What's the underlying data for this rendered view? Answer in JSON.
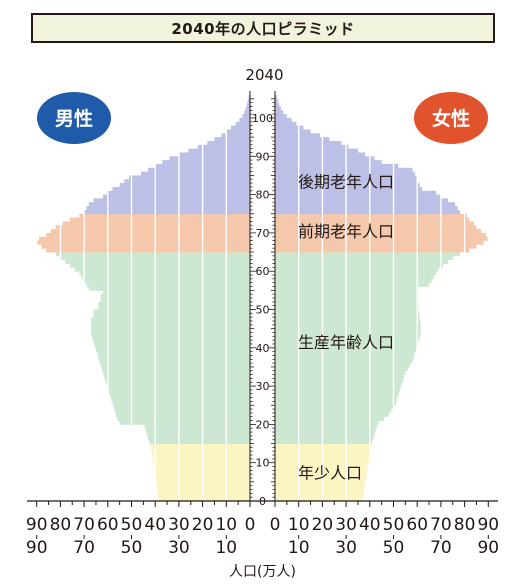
{
  "title": "2040年の人口ピラミッド",
  "year_label": "2040",
  "male_label": "男性",
  "female_label": "女性",
  "colors": {
    "elderly_late": "#bcc0e6",
    "elderly_early": "#f6c8ab",
    "working": "#cde8d2",
    "young": "#fbf4c3",
    "male_badge": "#1f5ba8",
    "female_badge": "#e0532c"
  },
  "chart_data": {
    "type": "bar",
    "orientation": "horizontal",
    "title": "2040年の人口ピラミッド",
    "xlabel": "人口(万人)",
    "x_ticks_top": [
      "90",
      "80",
      "70",
      "60",
      "50",
      "40",
      "30",
      "20",
      "10",
      "0"
    ],
    "x_ticks_bottom": [
      "90",
      "70",
      "50",
      "30",
      "10"
    ],
    "y_ticks": [
      "0",
      "10",
      "20",
      "30",
      "40",
      "50",
      "60",
      "70",
      "80",
      "90",
      "100"
    ],
    "xlim": [
      0,
      90
    ],
    "ylim": [
      0,
      105
    ],
    "age_bands": [
      {
        "label": "年少人口",
        "range": [
          0,
          14
        ]
      },
      {
        "label": "生産年齢人口",
        "range": [
          15,
          64
        ]
      },
      {
        "label": "前期老年人口",
        "range": [
          65,
          74
        ]
      },
      {
        "label": "後期老年人口",
        "range": [
          75,
          105
        ]
      }
    ],
    "ages": [
      0,
      1,
      2,
      3,
      4,
      5,
      6,
      7,
      8,
      9,
      10,
      11,
      12,
      13,
      14,
      15,
      16,
      17,
      18,
      19,
      20,
      21,
      22,
      23,
      24,
      25,
      26,
      27,
      28,
      29,
      30,
      31,
      32,
      33,
      34,
      35,
      36,
      37,
      38,
      39,
      40,
      41,
      42,
      43,
      44,
      45,
      46,
      47,
      48,
      49,
      50,
      51,
      52,
      53,
      54,
      55,
      56,
      57,
      58,
      59,
      60,
      61,
      62,
      63,
      64,
      65,
      66,
      67,
      68,
      69,
      70,
      71,
      72,
      73,
      74,
      75,
      76,
      77,
      78,
      79,
      80,
      81,
      82,
      83,
      84,
      85,
      86,
      87,
      88,
      89,
      90,
      91,
      92,
      93,
      94,
      95,
      96,
      97,
      98,
      99,
      100,
      101,
      102,
      103,
      104,
      105
    ],
    "series": [
      {
        "name": "男性",
        "values": [
          38.5,
          38.8,
          39,
          39.2,
          39.5,
          39.8,
          40,
          40.2,
          40.5,
          40.8,
          41,
          41.2,
          41.5,
          41.8,
          42,
          42.5,
          43,
          43.5,
          44,
          44.5,
          55,
          56,
          56.5,
          57,
          57.5,
          58,
          58.5,
          59,
          59.5,
          60,
          60.5,
          61,
          61.5,
          62,
          62.5,
          63,
          63.5,
          64,
          64.5,
          65,
          65.5,
          66,
          66.5,
          67,
          67,
          67,
          67,
          67,
          66,
          66,
          64,
          64,
          63,
          63,
          62,
          68,
          69,
          70,
          71,
          72,
          74,
          76,
          78,
          80,
          82,
          86,
          88,
          90,
          89,
          86,
          84,
          82,
          79,
          76,
          72,
          70,
          69,
          68,
          66,
          62,
          60,
          58,
          55,
          53,
          51,
          46,
          43,
          40,
          37,
          34,
          30,
          26,
          22,
          18,
          15,
          12,
          10,
          8,
          6,
          4.5,
          3.2,
          2.4,
          1.8,
          1.3,
          0.9,
          0.6
        ]
      },
      {
        "name": "女性",
        "values": [
          37,
          37.2,
          37.5,
          37.7,
          38,
          38.2,
          38.5,
          38.7,
          39,
          39.2,
          39.5,
          39.7,
          40,
          40.2,
          40.5,
          41,
          41.5,
          42,
          42.5,
          43,
          44,
          46,
          48,
          49,
          50,
          51,
          51.5,
          52,
          52.5,
          53,
          53.5,
          54,
          54.5,
          55,
          56,
          57,
          58,
          58.5,
          59,
          59.5,
          60,
          60.5,
          61,
          61.5,
          61.5,
          61.5,
          61.5,
          61,
          61,
          60.5,
          60.5,
          60,
          60,
          60,
          60,
          60,
          65,
          66,
          67,
          68,
          69,
          71,
          73,
          75,
          78,
          82,
          85,
          88,
          90,
          89,
          87,
          85,
          84,
          82,
          81,
          78,
          77,
          76,
          73,
          70,
          68,
          62,
          61,
          60,
          60,
          59,
          58,
          52,
          45,
          42,
          38,
          35,
          31,
          28,
          23,
          19,
          15,
          12,
          9,
          7,
          5,
          3.5,
          2.5,
          1.8,
          1.2,
          0.8
        ]
      }
    ],
    "band_labels": [
      {
        "text": "後期老年人口",
        "age": 83
      },
      {
        "text": "前期老年人口",
        "age": 70
      },
      {
        "text": "生産年齢人口",
        "age": 41
      },
      {
        "text": "年少人口",
        "age": 7
      }
    ]
  }
}
